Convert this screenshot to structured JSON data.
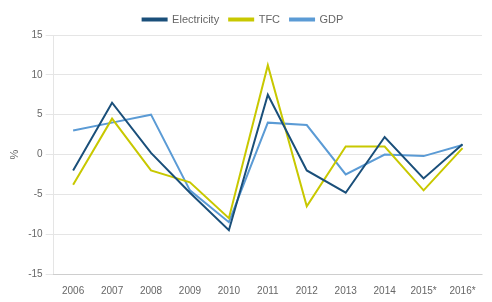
{
  "chart_data": {
    "type": "line",
    "ylabel": "%",
    "categories": [
      "2006",
      "2007",
      "2008",
      "2009",
      "2010",
      "2011",
      "2012",
      "2013",
      "2014",
      "2015*",
      "2016*"
    ],
    "series": [
      {
        "name": "Electricity",
        "color": "#1a4f7a",
        "values": [
          -2.0,
          6.5,
          0.2,
          -4.8,
          -9.5,
          7.5,
          -2.0,
          -4.8,
          2.2,
          -3.0,
          1.3
        ]
      },
      {
        "name": "TFC",
        "color": "#c8c800",
        "values": [
          -3.8,
          4.5,
          -2.0,
          -3.5,
          -8.0,
          11.2,
          -6.5,
          1.0,
          1.0,
          -4.5,
          0.8
        ]
      },
      {
        "name": "GDP",
        "color": "#5b9bd5",
        "values": [
          3.0,
          4.0,
          5.0,
          -4.5,
          -8.5,
          4.0,
          3.7,
          -2.5,
          0.0,
          -0.2,
          1.2
        ]
      }
    ],
    "ylim": [
      -15,
      15
    ],
    "yticks": [
      -15,
      -10,
      -5,
      0,
      5,
      10,
      15
    ],
    "grid": true,
    "legend": "top"
  }
}
